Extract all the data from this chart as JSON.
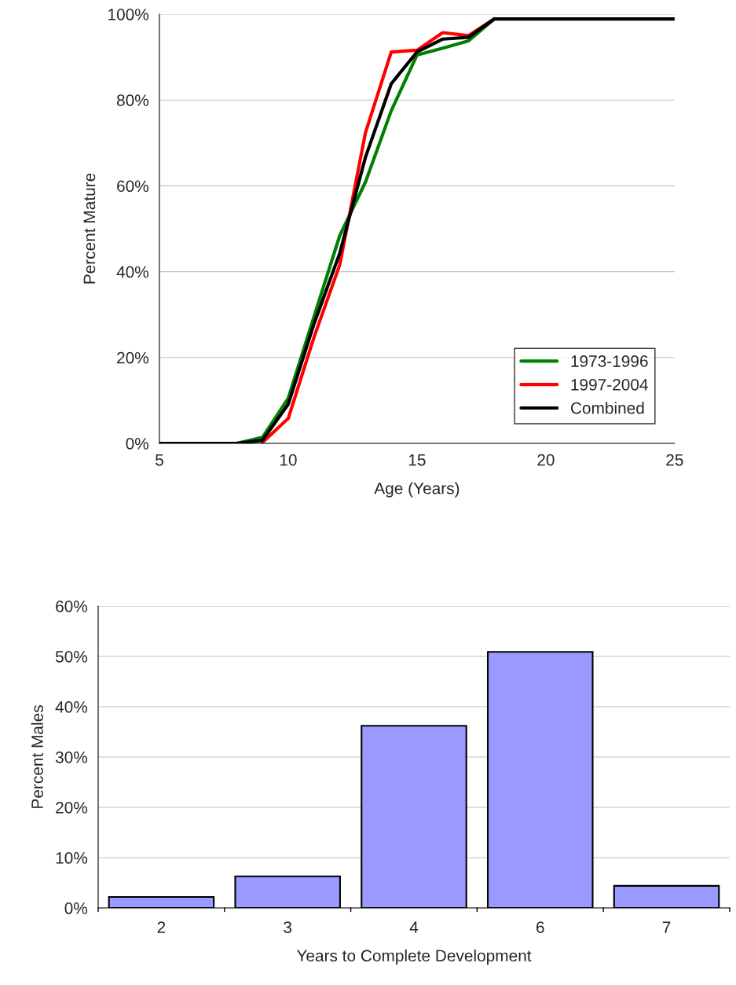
{
  "chart_data": [
    {
      "type": "line",
      "xlabel": "Age (Years)",
      "ylabel": "Percent Mature",
      "x": [
        5,
        6,
        7,
        8,
        9,
        10,
        11,
        12,
        13,
        14,
        15,
        16,
        17,
        18,
        19,
        20,
        21,
        22,
        23,
        24,
        25
      ],
      "series": [
        {
          "name": "1973-1996",
          "color": "#008000",
          "values": [
            null,
            null,
            0,
            0,
            1.4,
            10.5,
            29.5,
            48.4,
            60.9,
            77.5,
            90.5,
            92.1,
            93.8,
            98.9,
            null,
            null,
            null,
            null,
            null,
            null,
            null
          ]
        },
        {
          "name": "1997-2004",
          "color": "#ff0000",
          "values": [
            null,
            null,
            null,
            null,
            0.2,
            5.8,
            24.7,
            41.6,
            72.4,
            91.2,
            91.6,
            95.7,
            95,
            98.9,
            null,
            null,
            null,
            null,
            null,
            null,
            null
          ]
        },
        {
          "name": "Combined",
          "color": "#000000",
          "values": [
            0,
            0,
            0,
            0,
            0.7,
            9.1,
            27.8,
            44.3,
            66.7,
            83.8,
            91.2,
            94.2,
            94.6,
            98.9,
            98.9,
            98.9,
            98.9,
            98.9,
            98.9,
            98.9,
            98.9
          ]
        }
      ],
      "xlim": [
        5,
        25
      ],
      "xticks": [
        5,
        10,
        15,
        20,
        25
      ],
      "ylim": [
        0,
        100
      ],
      "yticks": [
        {
          "value": 0,
          "label": "0%"
        },
        {
          "value": 20,
          "label": "20%"
        },
        {
          "value": 40,
          "label": "40%"
        },
        {
          "value": 60,
          "label": "60%"
        },
        {
          "value": 80,
          "label": "80%"
        },
        {
          "value": 100,
          "label": "100%"
        }
      ],
      "grid": "y",
      "legend": "bottom right",
      "line_style": "solid",
      "marker": "none"
    },
    {
      "type": "bar",
      "xlabel": "Years to Complete Development",
      "ylabel": "Percent Males",
      "categories": [
        "2",
        "3",
        "4",
        "6",
        "7"
      ],
      "values": [
        2.2,
        6.3,
        36.2,
        50.9,
        4.4
      ],
      "color": "#9999ff",
      "ylim": [
        0,
        60
      ],
      "yticks": [
        {
          "value": 0,
          "label": "0%"
        },
        {
          "value": 10,
          "label": "10%"
        },
        {
          "value": 20,
          "label": "20%"
        },
        {
          "value": 30,
          "label": "30%"
        },
        {
          "value": 40,
          "label": "40%"
        },
        {
          "value": 50,
          "label": "50%"
        },
        {
          "value": 60,
          "label": "60%"
        }
      ],
      "grid": "y"
    }
  ]
}
